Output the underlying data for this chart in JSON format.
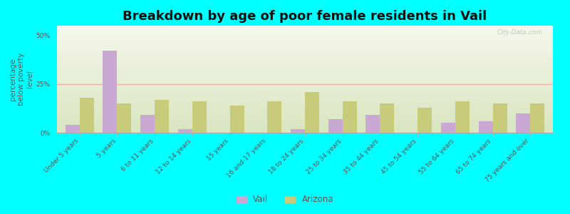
{
  "title": "Breakdown by age of poor female residents in Vail",
  "ylabel": "percentage\nbelow poverty\nlevel",
  "categories": [
    "Under 5 years",
    "5 years",
    "6 to 11 years",
    "12 to 14 years",
    "15 years",
    "16 and 17 years",
    "18 to 24 years",
    "25 to 34 years",
    "35 to 44 years",
    "45 to 54 years",
    "55 to 64 years",
    "65 to 74 years",
    "75 years and over"
  ],
  "vail_values": [
    4,
    42,
    9,
    2,
    0,
    0,
    2,
    7,
    9,
    0,
    5,
    6,
    10
  ],
  "arizona_values": [
    18,
    15,
    17,
    16,
    14,
    16,
    21,
    16,
    15,
    13,
    16,
    15,
    15
  ],
  "vail_color": "#c9a8d4",
  "arizona_color": "#c8cc7a",
  "background_color": "#00ffff",
  "plot_bg_color": "#f0f2e0",
  "ylim": [
    0,
    55
  ],
  "yticks": [
    0,
    25,
    50
  ],
  "ytick_labels": [
    "0%",
    "25%",
    "50%"
  ],
  "bar_width": 0.38,
  "title_fontsize": 13,
  "axis_label_fontsize": 7.5,
  "tick_fontsize": 6.5,
  "legend_labels": [
    "Vail",
    "Arizona"
  ],
  "watermark": "City-Data.com"
}
